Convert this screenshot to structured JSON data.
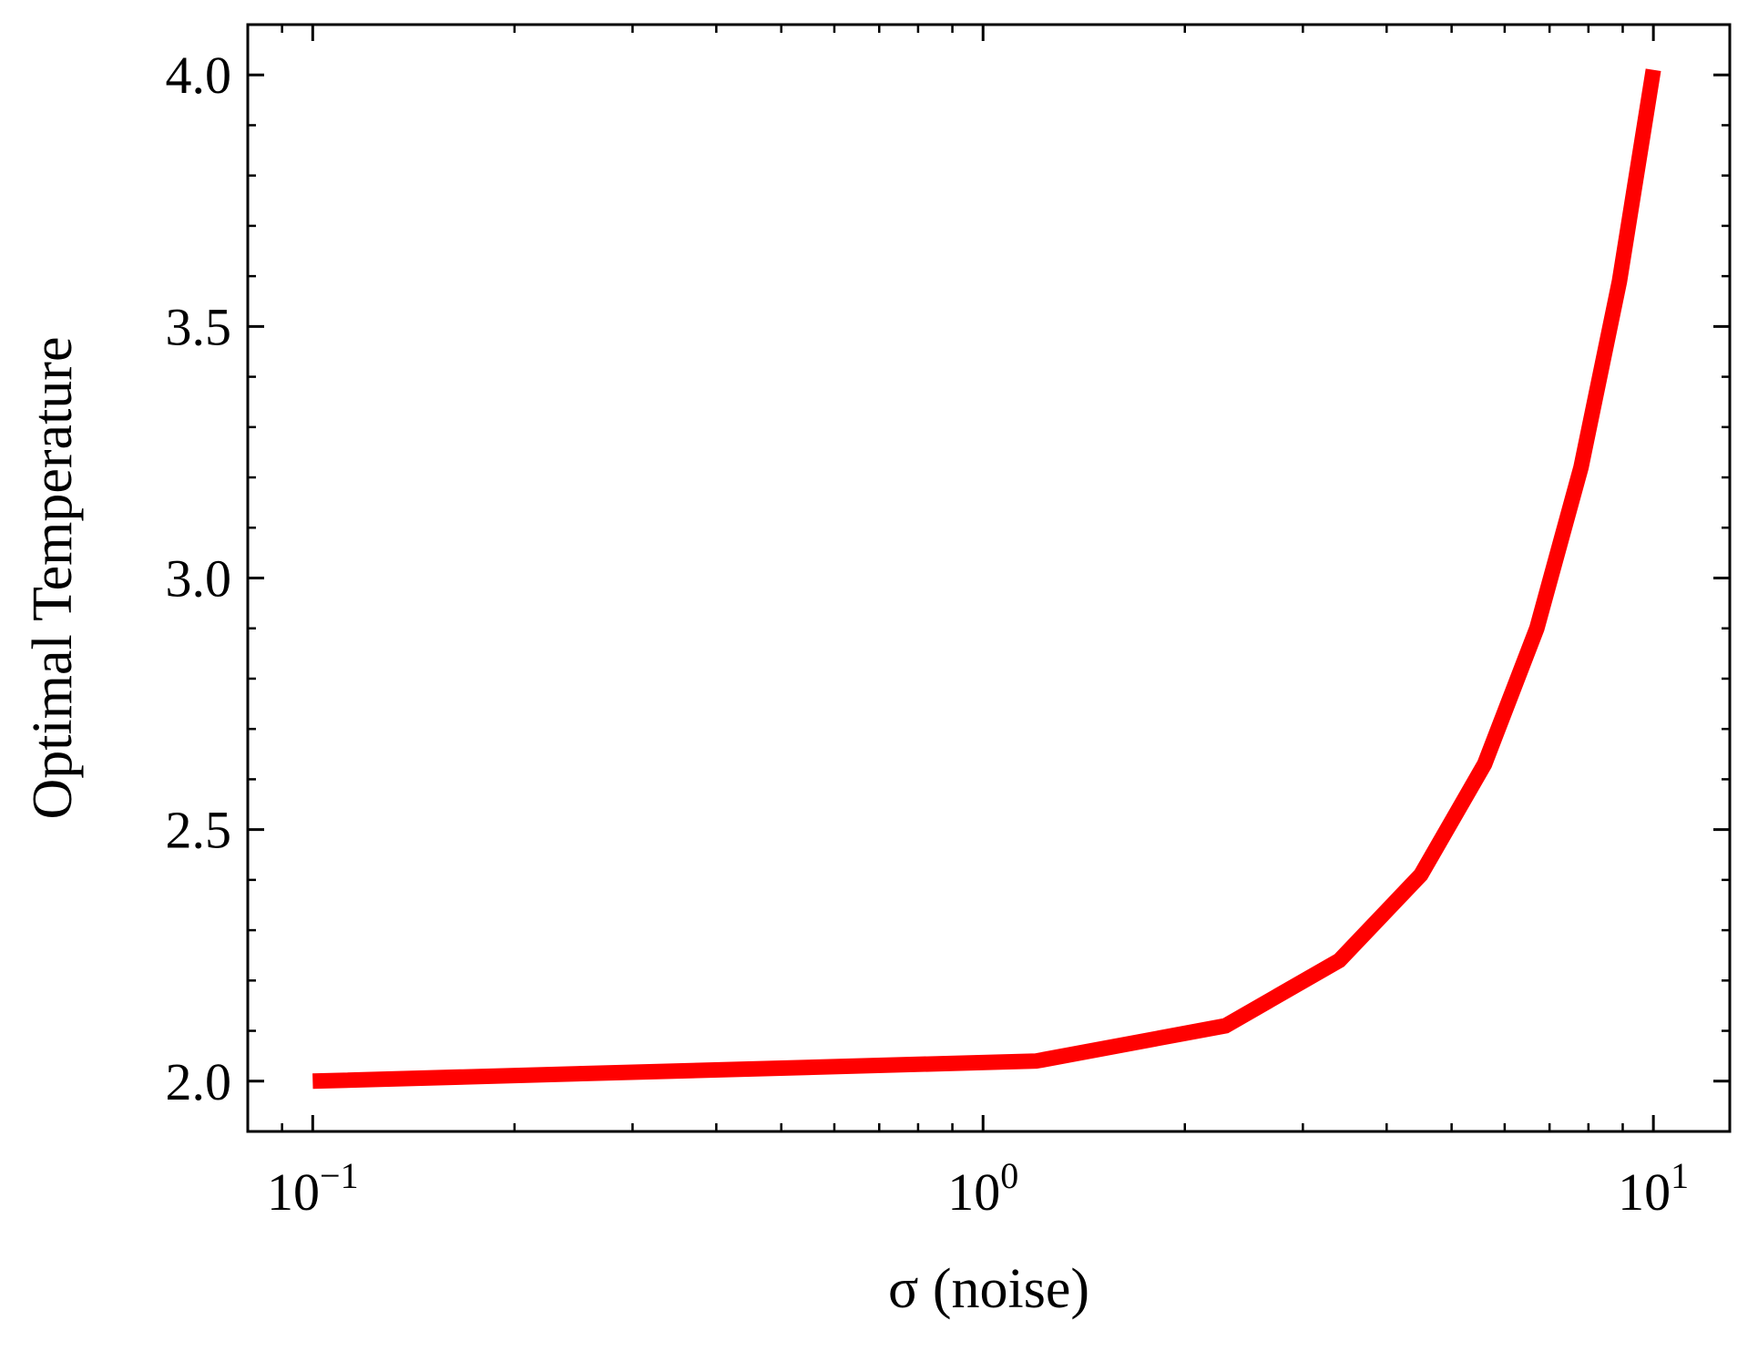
{
  "chart_data": {
    "type": "line",
    "xlabel": "σ (noise)",
    "ylabel": "Optimal Temperature",
    "xscale": "log",
    "xlim": [
      0.08,
      13
    ],
    "ylim": [
      1.9,
      4.1
    ],
    "grid": false,
    "line_color": "#ff0000",
    "x_ticks": [
      {
        "value": 0.1,
        "base": "10",
        "exp": "−1"
      },
      {
        "value": 1,
        "base": "10",
        "exp": "0"
      },
      {
        "value": 10,
        "base": "10",
        "exp": "1"
      }
    ],
    "y_ticks": [
      {
        "value": 2.0,
        "label": "2.0"
      },
      {
        "value": 2.5,
        "label": "2.5"
      },
      {
        "value": 3.0,
        "label": "3.0"
      },
      {
        "value": 3.5,
        "label": "3.5"
      },
      {
        "value": 4.0,
        "label": "4.0"
      }
    ],
    "series": [
      {
        "x": [
          0.1,
          1.2,
          2.3,
          3.4,
          4.5,
          5.6,
          6.7,
          7.8,
          8.9,
          10.0
        ],
        "y": [
          2.0,
          2.04,
          2.11,
          2.24,
          2.41,
          2.63,
          2.9,
          3.22,
          3.59,
          4.01
        ]
      }
    ]
  }
}
